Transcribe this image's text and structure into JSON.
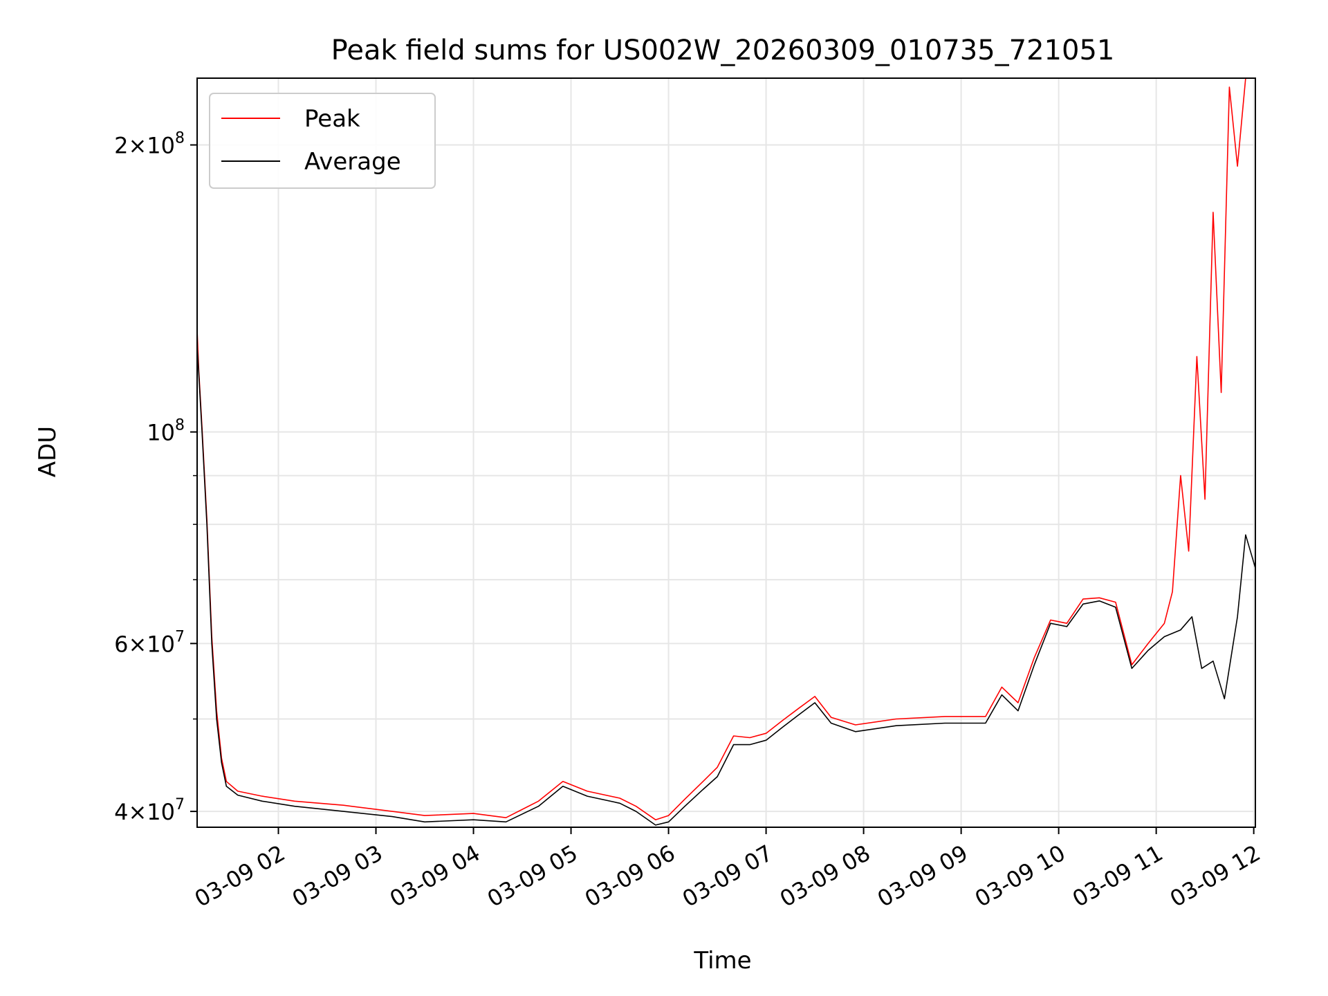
{
  "chart_data": {
    "type": "line",
    "title": "Peak field sums for US002W_20260309_010735_721051",
    "xlabel": "Time",
    "ylabel": "ADU",
    "yscale": "log",
    "xlim": [
      "03-09 01:10",
      "03-09 12:01"
    ],
    "ylim": [
      38500000,
      235000000
    ],
    "grid": true,
    "legend_position": "top-left",
    "x_ticks": [
      {
        "t": "03-09 02:00",
        "label": "03-09 02"
      },
      {
        "t": "03-09 03:00",
        "label": "03-09 03"
      },
      {
        "t": "03-09 04:00",
        "label": "03-09 04"
      },
      {
        "t": "03-09 05:00",
        "label": "03-09 05"
      },
      {
        "t": "03-09 06:00",
        "label": "03-09 06"
      },
      {
        "t": "03-09 07:00",
        "label": "03-09 07"
      },
      {
        "t": "03-09 08:00",
        "label": "03-09 08"
      },
      {
        "t": "03-09 09:00",
        "label": "03-09 09"
      },
      {
        "t": "03-09 10:00",
        "label": "03-09 10"
      },
      {
        "t": "03-09 11:00",
        "label": "03-09 11"
      },
      {
        "t": "03-09 12:00",
        "label": "03-09 12"
      }
    ],
    "y_ticks": [
      {
        "value": 40000000,
        "mant": "4",
        "exp": "7"
      },
      {
        "value": 60000000,
        "mant": "6",
        "exp": "7"
      },
      {
        "value": 100000000,
        "mant": "",
        "exp": "8"
      },
      {
        "value": 200000000,
        "mant": "2",
        "exp": "8"
      }
    ],
    "y_minor_ticks": [
      50000000,
      70000000,
      80000000,
      90000000
    ],
    "series": [
      {
        "name": "Average",
        "color": "#000000",
        "points": [
          [
            "03-09 01:10",
            123000000
          ],
          [
            "03-09 01:11",
            115000000
          ],
          [
            "03-09 01:13",
            100000000
          ],
          [
            "03-09 01:16",
            80000000
          ],
          [
            "03-09 01:19",
            60000000
          ],
          [
            "03-09 01:22",
            50000000
          ],
          [
            "03-09 01:25",
            45000000
          ],
          [
            "03-09 01:28",
            42500000
          ],
          [
            "03-09 01:35",
            41600000
          ],
          [
            "03-09 01:50",
            41000000
          ],
          [
            "03-09 02:10",
            40500000
          ],
          [
            "03-09 02:40",
            40000000
          ],
          [
            "03-09 03:10",
            39500000
          ],
          [
            "03-09 03:30",
            39000000
          ],
          [
            "03-09 04:00",
            39200000
          ],
          [
            "03-09 04:20",
            39000000
          ],
          [
            "03-09 04:40",
            40500000
          ],
          [
            "03-09 04:55",
            42500000
          ],
          [
            "03-09 05:10",
            41500000
          ],
          [
            "03-09 05:30",
            40800000
          ],
          [
            "03-09 05:40",
            40000000
          ],
          [
            "03-09 05:52",
            38700000
          ],
          [
            "03-09 06:00",
            39000000
          ],
          [
            "03-09 06:10",
            40500000
          ],
          [
            "03-09 06:20",
            42000000
          ],
          [
            "03-09 06:30",
            43500000
          ],
          [
            "03-09 06:40",
            47000000
          ],
          [
            "03-09 06:50",
            47000000
          ],
          [
            "03-09 07:00",
            47500000
          ],
          [
            "03-09 07:10",
            49000000
          ],
          [
            "03-09 07:20",
            50500000
          ],
          [
            "03-09 07:30",
            52000000
          ],
          [
            "03-09 07:40",
            49500000
          ],
          [
            "03-09 07:55",
            48500000
          ],
          [
            "03-09 08:20",
            49200000
          ],
          [
            "03-09 08:50",
            49500000
          ],
          [
            "03-09 09:15",
            49500000
          ],
          [
            "03-09 09:25",
            53000000
          ],
          [
            "03-09 09:35",
            51000000
          ],
          [
            "03-09 09:45",
            57000000
          ],
          [
            "03-09 09:55",
            63000000
          ],
          [
            "03-09 10:05",
            62500000
          ],
          [
            "03-09 10:15",
            66000000
          ],
          [
            "03-09 10:25",
            66500000
          ],
          [
            "03-09 10:35",
            65500000
          ],
          [
            "03-09 10:45",
            56500000
          ],
          [
            "03-09 10:55",
            59000000
          ],
          [
            "03-09 11:05",
            61000000
          ],
          [
            "03-09 11:15",
            62000000
          ],
          [
            "03-09 11:22",
            64000000
          ],
          [
            "03-09 11:28",
            56500000
          ],
          [
            "03-09 11:35",
            57500000
          ],
          [
            "03-09 11:42",
            52500000
          ],
          [
            "03-09 11:50",
            64000000
          ],
          [
            "03-09 11:55",
            78000000
          ],
          [
            "03-09 12:01",
            72000000
          ]
        ]
      },
      {
        "name": "Peak",
        "color": "#ff0000",
        "points": [
          [
            "03-09 01:10",
            128000000
          ],
          [
            "03-09 01:11",
            116000000
          ],
          [
            "03-09 01:13",
            101000000
          ],
          [
            "03-09 01:16",
            81000000
          ],
          [
            "03-09 01:19",
            61000000
          ],
          [
            "03-09 01:22",
            51000000
          ],
          [
            "03-09 01:25",
            45500000
          ],
          [
            "03-09 01:28",
            43000000
          ],
          [
            "03-09 01:35",
            42000000
          ],
          [
            "03-09 01:50",
            41500000
          ],
          [
            "03-09 02:10",
            41000000
          ],
          [
            "03-09 02:40",
            40600000
          ],
          [
            "03-09 03:10",
            40000000
          ],
          [
            "03-09 03:30",
            39600000
          ],
          [
            "03-09 04:00",
            39800000
          ],
          [
            "03-09 04:20",
            39400000
          ],
          [
            "03-09 04:40",
            41000000
          ],
          [
            "03-09 04:55",
            43000000
          ],
          [
            "03-09 05:10",
            42000000
          ],
          [
            "03-09 05:30",
            41300000
          ],
          [
            "03-09 05:40",
            40500000
          ],
          [
            "03-09 05:52",
            39200000
          ],
          [
            "03-09 06:00",
            39600000
          ],
          [
            "03-09 06:10",
            41200000
          ],
          [
            "03-09 06:20",
            42800000
          ],
          [
            "03-09 06:30",
            44500000
          ],
          [
            "03-09 06:40",
            48000000
          ],
          [
            "03-09 06:50",
            47800000
          ],
          [
            "03-09 07:00",
            48300000
          ],
          [
            "03-09 07:10",
            49800000
          ],
          [
            "03-09 07:20",
            51300000
          ],
          [
            "03-09 07:30",
            52800000
          ],
          [
            "03-09 07:40",
            50200000
          ],
          [
            "03-09 07:55",
            49300000
          ],
          [
            "03-09 08:20",
            50000000
          ],
          [
            "03-09 08:50",
            50300000
          ],
          [
            "03-09 09:15",
            50300000
          ],
          [
            "03-09 09:25",
            54000000
          ],
          [
            "03-09 09:35",
            52000000
          ],
          [
            "03-09 09:45",
            58000000
          ],
          [
            "03-09 09:55",
            63500000
          ],
          [
            "03-09 10:05",
            63000000
          ],
          [
            "03-09 10:15",
            66800000
          ],
          [
            "03-09 10:25",
            67000000
          ],
          [
            "03-09 10:35",
            66300000
          ],
          [
            "03-09 10:45",
            57000000
          ],
          [
            "03-09 10:55",
            60000000
          ],
          [
            "03-09 11:05",
            63000000
          ],
          [
            "03-09 11:10",
            68000000
          ],
          [
            "03-09 11:15",
            90000000
          ],
          [
            "03-09 11:20",
            75000000
          ],
          [
            "03-09 11:25",
            120000000
          ],
          [
            "03-09 11:30",
            85000000
          ],
          [
            "03-09 11:35",
            170000000
          ],
          [
            "03-09 11:40",
            110000000
          ],
          [
            "03-09 11:45",
            230000000
          ],
          [
            "03-09 11:50",
            190000000
          ],
          [
            "03-09 11:55",
            235000000
          ],
          [
            "03-09 12:01",
            235000000
          ]
        ]
      }
    ]
  }
}
